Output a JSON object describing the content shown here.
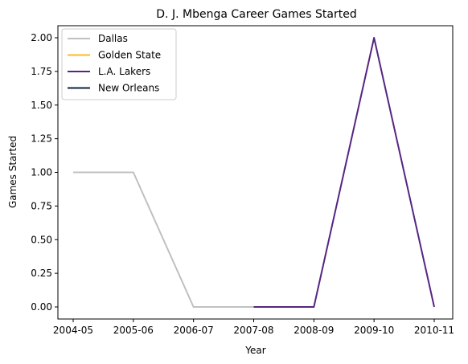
{
  "chart_data": {
    "type": "line",
    "title": "D. J. Mbenga Career Games Started",
    "xlabel": "Year",
    "ylabel": "Games Started",
    "categories": [
      "2004-05",
      "2005-06",
      "2006-07",
      "2007-08",
      "2008-09",
      "2009-10",
      "2010-11"
    ],
    "ylim": [
      -0.1,
      2.1
    ],
    "yticks": [
      "0.00",
      "0.25",
      "0.50",
      "0.75",
      "1.00",
      "1.25",
      "1.50",
      "1.75",
      "2.00"
    ],
    "grid": false,
    "legend_position": "top-left",
    "series": [
      {
        "name": "Dallas",
        "color": "#c0c0c0",
        "points": [
          [
            0,
            1
          ],
          [
            1,
            1
          ],
          [
            2,
            0
          ],
          [
            3,
            0
          ]
        ]
      },
      {
        "name": "Golden State",
        "color": "#fdb927",
        "points": []
      },
      {
        "name": "L.A. Lakers",
        "color": "#552583",
        "points": [
          [
            3,
            0
          ],
          [
            4,
            0
          ],
          [
            5,
            2
          ],
          [
            6,
            0
          ]
        ]
      },
      {
        "name": "New Orleans",
        "color": "#0c2340",
        "points": []
      }
    ]
  }
}
